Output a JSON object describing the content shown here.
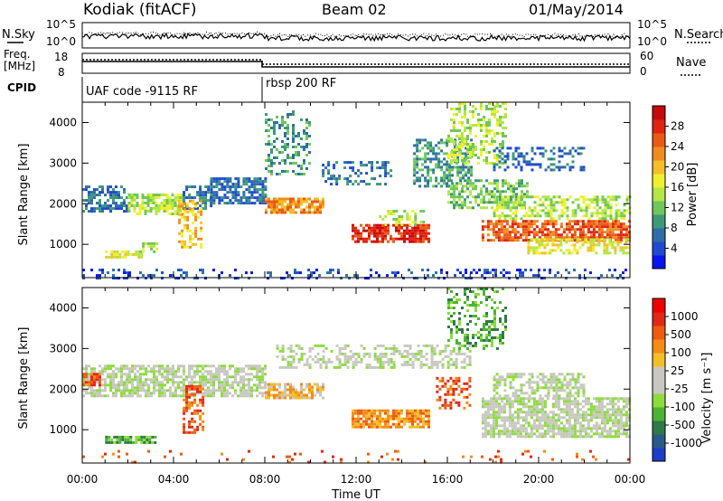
{
  "header": {
    "site": "Kodiak (fitACF)",
    "beam": "Beam 02",
    "date": "01/May/2014"
  },
  "summary_panels": {
    "nsky": {
      "label": "N.Sky",
      "ticks": [
        "10^5",
        "10^0"
      ]
    },
    "nsearch": {
      "label": "N.Search",
      "ticks": [
        "10^5",
        "10^0"
      ]
    },
    "freq": {
      "label_line1": "Freq.",
      "label_line2": "[MHz]",
      "ticks": [
        "18",
        "8"
      ]
    },
    "nave": {
      "label": "Nave",
      "ticks": [
        "60",
        "0"
      ]
    },
    "cpid": {
      "label": "CPID",
      "segments": [
        "UAF code -9115 RF",
        "rbsp 200 RF"
      ]
    }
  },
  "chart_data": [
    {
      "type": "heatmap",
      "name": "power",
      "ylabel": "Slant Range [km]",
      "xlabel": "Time UT",
      "xlim": [
        "00:00",
        "24:00"
      ],
      "ylim": [
        180,
        4500
      ],
      "x_ticks": [
        "00:00",
        "04:00",
        "08:00",
        "12:00",
        "16:00",
        "20:00",
        "00:00"
      ],
      "y_ticks": [
        "1000",
        "2000",
        "3000",
        "4000"
      ],
      "colorbar": {
        "label": "Power [dB]",
        "ticks": [
          "28",
          "24",
          "20",
          "16",
          "12",
          "8",
          "4"
        ],
        "colors": [
          "#0a14f0",
          "#1e4bd2",
          "#2d6ea8",
          "#3c9a78",
          "#6ec85a",
          "#b4e646",
          "#f0f02d",
          "#f5be28",
          "#f08c1e",
          "#eb5a14",
          "#e1230f",
          "#c80a0a"
        ]
      },
      "features": [
        {
          "t0": 0.0,
          "t1": 2.0,
          "r0": 1800,
          "r1": 2450,
          "level": 2,
          "density": 0.6
        },
        {
          "t0": 2.0,
          "t1": 4.4,
          "r0": 1750,
          "r1": 2250,
          "level": 5,
          "density": 0.7
        },
        {
          "t0": 4.4,
          "t1": 5.6,
          "r0": 1900,
          "r1": 2450,
          "level": 2,
          "density": 0.6
        },
        {
          "t0": 5.6,
          "t1": 8.0,
          "r0": 2000,
          "r1": 2650,
          "level": 2,
          "density": 0.7
        },
        {
          "t0": 1.0,
          "t1": 2.6,
          "r0": 650,
          "r1": 850,
          "level": 6,
          "density": 0.8
        },
        {
          "t0": 2.5,
          "t1": 3.3,
          "r0": 800,
          "r1": 1050,
          "level": 5,
          "density": 0.6
        },
        {
          "t0": 4.2,
          "t1": 5.2,
          "r0": 900,
          "r1": 2100,
          "level": 7,
          "density": 0.45
        },
        {
          "t0": 8.0,
          "t1": 10.5,
          "r0": 1750,
          "r1": 2150,
          "level": 8,
          "density": 0.8
        },
        {
          "t0": 8.0,
          "t1": 10.0,
          "r0": 2700,
          "r1": 4300,
          "level": 3,
          "density": 0.35
        },
        {
          "t0": 10.5,
          "t1": 13.5,
          "r0": 2450,
          "r1": 3050,
          "level": 2,
          "density": 0.35
        },
        {
          "t0": 11.8,
          "t1": 15.2,
          "r0": 1050,
          "r1": 1500,
          "level": 10,
          "density": 0.8
        },
        {
          "t0": 13.0,
          "t1": 15.0,
          "r0": 1450,
          "r1": 1850,
          "level": 5,
          "density": 0.45
        },
        {
          "t0": 14.5,
          "t1": 17.0,
          "r0": 2400,
          "r1": 3600,
          "level": 3,
          "density": 0.5
        },
        {
          "t0": 16.0,
          "t1": 18.5,
          "r0": 3000,
          "r1": 4500,
          "level": 5,
          "density": 0.4
        },
        {
          "t0": 16.0,
          "t1": 19.5,
          "r0": 1900,
          "r1": 2600,
          "level": 4,
          "density": 0.55
        },
        {
          "t0": 17.5,
          "t1": 24.0,
          "r0": 1100,
          "r1": 1600,
          "level": 9,
          "density": 0.75
        },
        {
          "t0": 19.5,
          "t1": 24.0,
          "r0": 800,
          "r1": 1150,
          "level": 6,
          "density": 0.6
        },
        {
          "t0": 18.0,
          "t1": 24.0,
          "r0": 1600,
          "r1": 2200,
          "level": 5,
          "density": 0.5
        },
        {
          "t0": 18.0,
          "t1": 22.0,
          "r0": 2800,
          "r1": 3400,
          "level": 2,
          "density": 0.35
        },
        {
          "t0": 0.0,
          "t1": 24.0,
          "r0": 180,
          "r1": 400,
          "level": 1,
          "density": 0.25
        }
      ]
    },
    {
      "type": "heatmap",
      "name": "velocity",
      "ylabel": "Slant Range [km]",
      "xlabel": "Time UT",
      "xlim": [
        "00:00",
        "24:00"
      ],
      "ylim": [
        180,
        4500
      ],
      "x_ticks": [
        "00:00",
        "04:00",
        "08:00",
        "12:00",
        "16:00",
        "20:00",
        "00:00"
      ],
      "y_ticks": [
        "1000",
        "2000",
        "3000",
        "4000"
      ],
      "colorbar": {
        "label": "Velocity [m s⁻¹]",
        "ticks": [
          "1000",
          "500",
          "100",
          "25",
          "-25",
          "-100",
          "-500",
          "-1000"
        ],
        "colors": [
          "#1e3cc8",
          "#285a8c",
          "#2d7a46",
          "#4bb432",
          "#8cdc3c",
          "#c8c8c0",
          "#c8c8c0",
          "#f5be28",
          "#f58c14",
          "#f05a0f",
          "#e12814",
          "#f00000"
        ]
      },
      "features": [
        {
          "t0": 0.0,
          "t1": 8.0,
          "r0": 1800,
          "r1": 2600,
          "level": 5,
          "density": 0.7
        },
        {
          "t0": 0.0,
          "t1": 0.8,
          "r0": 2100,
          "r1": 2400,
          "level": 9,
          "density": 0.8
        },
        {
          "t0": 1.0,
          "t1": 3.2,
          "r0": 650,
          "r1": 850,
          "level": 3,
          "density": 0.8
        },
        {
          "t0": 4.4,
          "t1": 5.3,
          "r0": 900,
          "r1": 2100,
          "level": 9,
          "density": 0.55
        },
        {
          "t0": 8.0,
          "t1": 10.5,
          "r0": 1750,
          "r1": 2150,
          "level": 7,
          "density": 0.6
        },
        {
          "t0": 8.5,
          "t1": 17.0,
          "r0": 2500,
          "r1": 3100,
          "level": 5,
          "density": 0.45
        },
        {
          "t0": 11.8,
          "t1": 15.2,
          "r0": 1050,
          "r1": 1500,
          "level": 8,
          "density": 0.8
        },
        {
          "t0": 15.5,
          "t1": 17.0,
          "r0": 1500,
          "r1": 2300,
          "level": 9,
          "density": 0.4
        },
        {
          "t0": 16.0,
          "t1": 18.5,
          "r0": 3000,
          "r1": 4500,
          "level": 3,
          "density": 0.35
        },
        {
          "t0": 17.5,
          "t1": 24.0,
          "r0": 800,
          "r1": 1800,
          "level": 5,
          "density": 0.75
        },
        {
          "t0": 18.0,
          "t1": 22.0,
          "r0": 1800,
          "r1": 2400,
          "level": 5,
          "density": 0.55
        },
        {
          "t0": 0.0,
          "t1": 24.0,
          "r0": 180,
          "r1": 500,
          "level": 9,
          "density": 0.06
        }
      ]
    }
  ]
}
